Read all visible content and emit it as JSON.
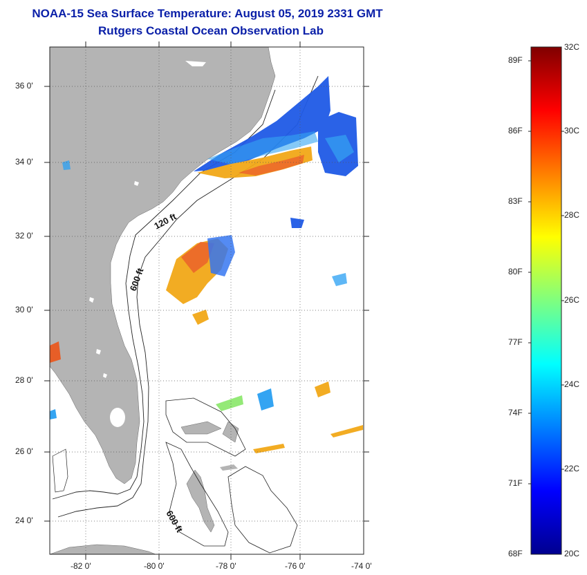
{
  "title_line1": "NOAA-15 Sea Surface Temperature:  August 05, 2019 2331 GMT",
  "title_line2": "Rutgers Coastal Ocean Observation Lab",
  "lat_labels": [
    "36 0'",
    "34 0'",
    "32 0'",
    "30 0'",
    "28 0'",
    "26 0'",
    "24 0'"
  ],
  "lon_labels": [
    "-82 0'",
    "-80 0'",
    "-78 0'",
    "-76 0'",
    "-74 0'"
  ],
  "contours": {
    "shallow": "120 ft",
    "deep": "600 ft",
    "deep_south": "600 ft"
  },
  "colorbar": {
    "fahrenheit": [
      "89F",
      "86F",
      "83F",
      "80F",
      "77F",
      "74F",
      "71F",
      "68F"
    ],
    "celsius": [
      "32C",
      "30C",
      "28C",
      "26C",
      "24C",
      "22C",
      "20C"
    ],
    "min_celsius": 20,
    "max_celsius": 32
  },
  "colors": {
    "land": "#b4b4b4",
    "title": "#0a1fa8",
    "water": "#ffffff"
  }
}
